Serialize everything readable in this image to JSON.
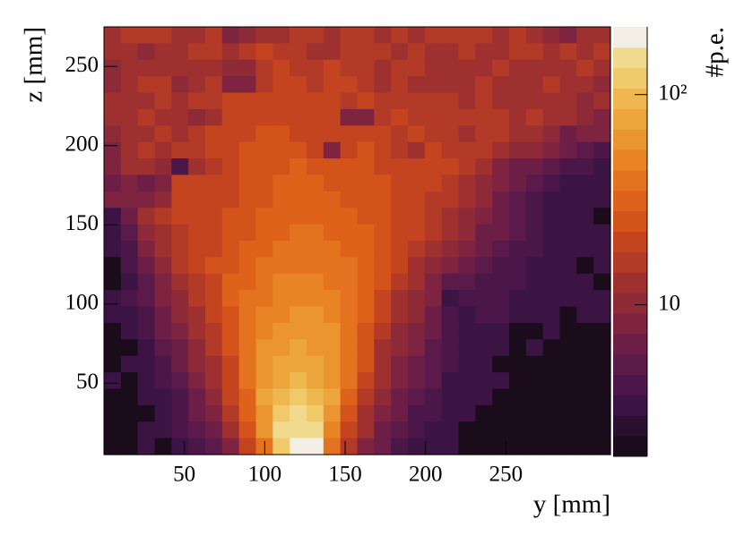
{
  "chart_data": {
    "type": "heatmap",
    "x_label": "y [mm]",
    "y_label": "z [mm]",
    "z_label": "#p.e.",
    "xlim": [
      0,
      315
    ],
    "ylim": [
      5,
      275
    ],
    "xticks": [
      50,
      100,
      150,
      200,
      250
    ],
    "yticks": [
      50,
      100,
      150,
      200,
      250
    ],
    "zlim": [
      1.9,
      210
    ],
    "zticks": [
      10,
      {
        "value": 100,
        "label": "10²"
      }
    ],
    "zscale": "log",
    "colormap": [
      "#1a0c1a",
      "#2a0f2f",
      "#3b1444",
      "#4a1748",
      "#5a1a4a",
      "#6c1e47",
      "#7e2340",
      "#8e2a38",
      "#9e312f",
      "#b33a27",
      "#c4441f",
      "#d4531a",
      "#de621a",
      "#e4731f",
      "#e88426",
      "#eb9530",
      "#eda63d",
      "#efb74f",
      "#efc96a",
      "#f0da90",
      "#f3efe4"
    ],
    "z": [
      [
        14,
        16,
        15,
        16,
        13,
        12,
        15,
        8,
        10,
        14,
        12,
        16,
        15,
        13,
        17,
        15,
        14,
        16,
        13,
        15,
        16,
        17,
        15,
        13,
        16,
        12,
        11,
        9,
        14,
        12
      ],
      [
        12,
        13,
        10,
        14,
        12,
        15,
        17,
        12,
        16,
        18,
        16,
        17,
        14,
        13,
        16,
        17,
        15,
        14,
        16,
        14,
        13,
        15,
        14,
        13,
        15,
        16,
        14,
        17,
        13,
        15
      ],
      [
        10,
        12,
        13,
        12,
        14,
        13,
        14,
        10,
        11,
        17,
        18,
        16,
        17,
        18,
        15,
        16,
        14,
        16,
        15,
        13,
        12,
        12,
        14,
        15,
        13,
        14,
        12,
        13,
        16,
        14
      ],
      [
        11,
        13,
        15,
        16,
        10,
        13,
        16,
        8,
        8,
        16,
        20,
        19,
        17,
        18,
        18,
        15,
        13,
        16,
        12,
        14,
        14,
        13,
        15,
        12,
        14,
        13,
        15,
        14,
        12,
        10
      ],
      [
        12,
        14,
        13,
        15,
        13,
        16,
        17,
        18,
        20,
        22,
        20,
        22,
        19,
        21,
        16,
        18,
        17,
        15,
        16,
        17,
        15,
        14,
        16,
        13,
        14,
        12,
        13,
        14,
        11,
        13
      ],
      [
        13,
        13,
        16,
        12,
        14,
        11,
        12,
        20,
        21,
        19,
        22,
        18,
        21,
        20,
        9,
        9,
        17,
        18,
        16,
        15,
        17,
        16,
        15,
        16,
        14,
        15,
        13,
        12,
        10,
        9
      ],
      [
        11,
        12,
        14,
        15,
        13,
        17,
        19,
        20,
        22,
        24,
        23,
        21,
        22,
        20,
        18,
        21,
        19,
        17,
        18,
        16,
        15,
        14,
        16,
        15,
        13,
        12,
        11,
        7,
        9,
        8
      ],
      [
        9,
        13,
        15,
        14,
        17,
        16,
        18,
        21,
        23,
        24,
        24,
        25,
        22,
        8,
        20,
        23,
        21,
        17,
        13,
        18,
        17,
        16,
        15,
        14,
        11,
        10,
        8,
        6,
        5,
        4
      ],
      [
        8,
        12,
        14,
        10,
        4,
        12,
        16,
        20,
        24,
        26,
        27,
        28,
        25,
        24,
        23,
        25,
        22,
        19,
        21,
        20,
        18,
        15,
        12,
        9,
        7,
        6,
        5,
        4,
        4,
        3
      ],
      [
        7,
        8,
        6,
        9,
        20,
        22,
        21,
        22,
        25,
        27,
        29,
        30,
        28,
        27,
        26,
        24,
        23,
        22,
        21,
        18,
        16,
        14,
        11,
        8,
        6,
        5,
        4,
        3,
        3,
        3
      ],
      [
        8,
        9,
        9,
        10,
        18,
        20,
        20,
        22,
        24,
        26,
        28,
        30,
        30,
        29,
        27,
        25,
        24,
        21,
        19,
        17,
        15,
        13,
        10,
        7,
        5,
        4,
        3,
        3,
        3,
        3
      ],
      [
        3,
        6,
        12,
        15,
        18,
        19,
        21,
        23,
        25,
        28,
        31,
        33,
        32,
        31,
        29,
        27,
        24,
        22,
        18,
        16,
        13,
        11,
        9,
        6,
        5,
        4,
        3,
        3,
        3,
        2
      ],
      [
        3,
        5,
        10,
        14,
        17,
        19,
        22,
        24,
        27,
        30,
        33,
        35,
        35,
        34,
        31,
        28,
        25,
        22,
        18,
        15,
        13,
        10,
        7,
        6,
        5,
        4,
        3,
        3,
        3,
        3
      ],
      [
        3,
        4,
        8,
        12,
        16,
        18,
        21,
        25,
        28,
        32,
        36,
        38,
        37,
        36,
        33,
        29,
        26,
        20,
        16,
        13,
        11,
        9,
        6,
        5,
        4,
        4,
        3,
        3,
        3,
        3
      ],
      [
        2,
        4,
        6,
        10,
        15,
        19,
        23,
        27,
        31,
        35,
        39,
        42,
        41,
        39,
        35,
        31,
        26,
        18,
        14,
        10,
        8,
        6,
        5,
        4,
        4,
        3,
        3,
        3,
        2,
        3
      ],
      [
        2,
        3,
        5,
        8,
        13,
        17,
        22,
        28,
        34,
        39,
        44,
        47,
        46,
        43,
        38,
        32,
        25,
        16,
        12,
        9,
        5,
        5,
        4,
        4,
        4,
        3,
        3,
        3,
        3,
        2
      ],
      [
        3,
        4,
        5,
        8,
        11,
        16,
        21,
        28,
        36,
        43,
        48,
        52,
        50,
        47,
        41,
        33,
        22,
        14,
        11,
        8,
        3,
        4,
        4,
        4,
        3,
        3,
        3,
        3,
        3,
        3
      ],
      [
        3,
        3,
        4,
        6,
        10,
        14,
        19,
        27,
        38,
        47,
        53,
        57,
        55,
        50,
        42,
        30,
        19,
        13,
        10,
        6,
        4,
        3,
        4,
        4,
        3,
        3,
        3,
        2,
        3,
        3
      ],
      [
        2,
        3,
        4,
        6,
        8,
        12,
        17,
        25,
        40,
        52,
        60,
        65,
        62,
        55,
        43,
        27,
        17,
        11,
        8,
        6,
        4,
        3,
        3,
        3,
        2,
        2,
        3,
        2,
        2,
        2
      ],
      [
        2,
        2,
        3,
        5,
        7,
        11,
        16,
        24,
        42,
        56,
        66,
        72,
        68,
        58,
        42,
        25,
        14,
        10,
        8,
        5,
        4,
        3,
        3,
        3,
        2,
        3,
        2,
        2,
        2,
        2
      ],
      [
        2,
        3,
        3,
        4,
        6,
        10,
        14,
        22,
        40,
        60,
        72,
        80,
        75,
        62,
        40,
        23,
        13,
        9,
        7,
        5,
        4,
        3,
        3,
        2,
        2,
        2,
        2,
        2,
        2,
        2
      ],
      [
        3,
        2,
        3,
        4,
        5,
        8,
        12,
        20,
        36,
        65,
        85,
        90,
        85,
        66,
        35,
        20,
        12,
        8,
        6,
        5,
        3,
        3,
        3,
        3,
        2,
        2,
        2,
        2,
        2,
        2
      ],
      [
        2,
        2,
        3,
        3,
        4,
        7,
        11,
        18,
        32,
        70,
        100,
        110,
        100,
        70,
        30,
        17,
        10,
        7,
        5,
        4,
        3,
        3,
        3,
        2,
        2,
        2,
        2,
        2,
        2,
        2
      ],
      [
        2,
        2,
        2,
        3,
        4,
        6,
        9,
        16,
        28,
        62,
        130,
        140,
        125,
        60,
        25,
        14,
        9,
        6,
        4,
        4,
        3,
        3,
        2,
        2,
        2,
        2,
        2,
        2,
        2,
        2
      ],
      [
        2,
        2,
        3,
        3,
        4,
        5,
        7,
        13,
        24,
        55,
        150,
        160,
        145,
        45,
        20,
        12,
        7,
        5,
        4,
        3,
        3,
        2,
        2,
        2,
        2,
        2,
        2,
        2,
        2,
        2
      ],
      [
        2,
        2,
        3,
        2,
        3,
        4,
        5,
        9,
        18,
        40,
        120,
        200,
        190,
        40,
        16,
        9,
        6,
        4,
        3,
        3,
        3,
        2,
        2,
        2,
        2,
        2,
        2,
        2,
        2,
        2
      ]
    ]
  }
}
